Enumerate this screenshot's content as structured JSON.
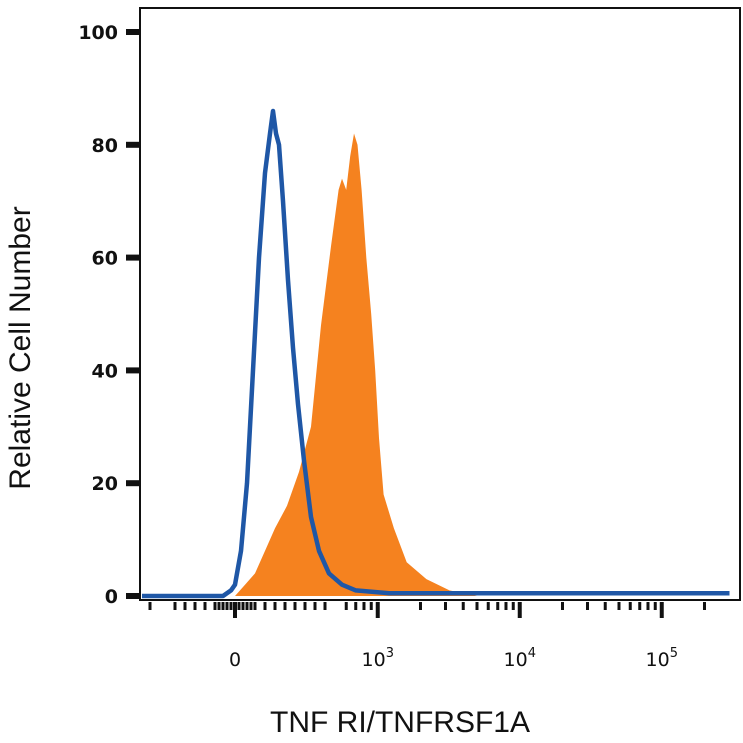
{
  "chart_data": {
    "type": "area",
    "title": "",
    "xlabel": "TNF RI/TNFRSF1A",
    "ylabel": "Relative Cell Number",
    "x_scale": "biexponential",
    "x_tick_labels": [
      {
        "base": "0",
        "exp": ""
      },
      {
        "base": "10",
        "exp": "3"
      },
      {
        "base": "10",
        "exp": "4"
      },
      {
        "base": "10",
        "exp": "5"
      }
    ],
    "y_ticks": [
      0,
      20,
      40,
      60,
      80,
      100
    ],
    "ylim": [
      0,
      100
    ],
    "grid": false,
    "legend": "none",
    "series": [
      {
        "style": "filled",
        "color": "#f5821f",
        "points": [
          [
            0,
            0
          ],
          [
            50,
            2
          ],
          [
            100,
            4
          ],
          [
            150,
            8
          ],
          [
            200,
            12
          ],
          [
            260,
            16
          ],
          [
            320,
            22
          ],
          [
            380,
            30
          ],
          [
            430,
            48
          ],
          [
            480,
            62
          ],
          [
            530,
            72
          ],
          [
            560,
            74
          ],
          [
            600,
            72
          ],
          [
            640,
            78
          ],
          [
            680,
            82
          ],
          [
            720,
            80
          ],
          [
            770,
            72
          ],
          [
            830,
            60
          ],
          [
            900,
            50
          ],
          [
            960,
            40
          ],
          [
            1020,
            28
          ],
          [
            1100,
            18
          ],
          [
            1300,
            12
          ],
          [
            1600,
            6
          ],
          [
            2200,
            3
          ],
          [
            3200,
            1
          ],
          [
            5000,
            0
          ]
        ]
      },
      {
        "style": "outline",
        "color": "#1f57a6",
        "points": [
          [
            -60,
            0
          ],
          [
            -20,
            1
          ],
          [
            0,
            2
          ],
          [
            30,
            8
          ],
          [
            60,
            20
          ],
          [
            90,
            40
          ],
          [
            120,
            60
          ],
          [
            150,
            75
          ],
          [
            175,
            82
          ],
          [
            190,
            86
          ],
          [
            205,
            82
          ],
          [
            220,
            80
          ],
          [
            240,
            70
          ],
          [
            265,
            56
          ],
          [
            290,
            44
          ],
          [
            315,
            34
          ],
          [
            345,
            24
          ],
          [
            380,
            14
          ],
          [
            420,
            8
          ],
          [
            470,
            4
          ],
          [
            560,
            2
          ],
          [
            700,
            1
          ],
          [
            1200,
            0.5
          ],
          [
            300000,
            0.5
          ]
        ]
      }
    ]
  }
}
